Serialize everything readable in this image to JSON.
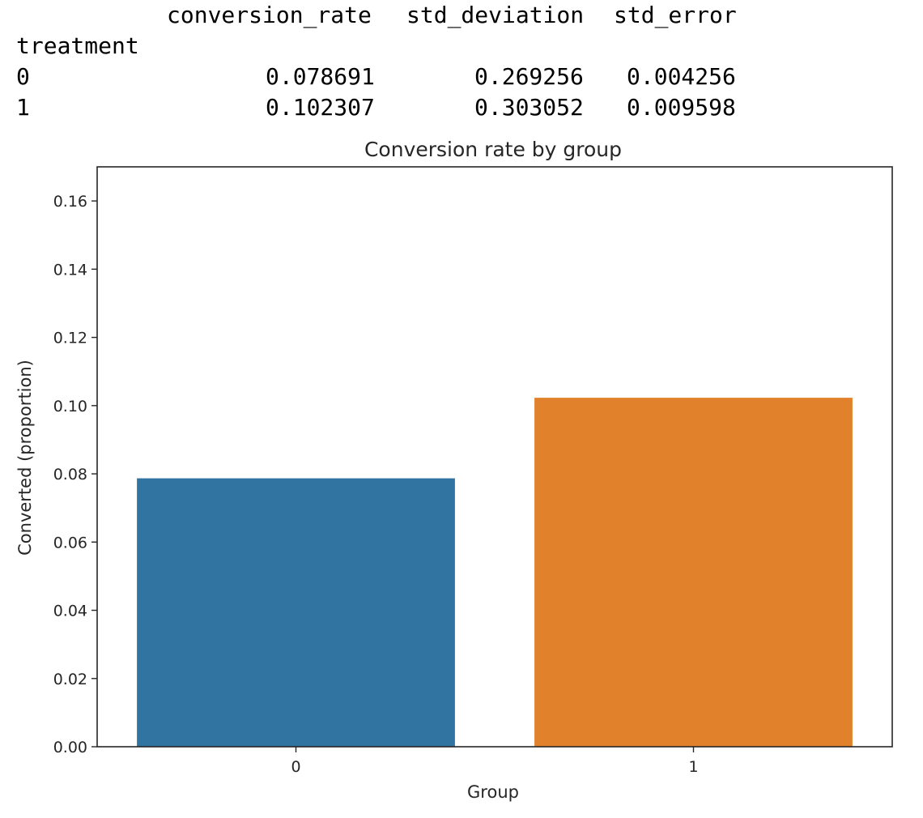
{
  "table": {
    "columns": [
      "conversion_rate",
      "std_deviation",
      "std_error"
    ],
    "index_name": "treatment",
    "rows": [
      {
        "index": "0",
        "values": [
          "0.078691",
          "0.269256",
          "0.004256"
        ]
      },
      {
        "index": "1",
        "values": [
          "0.102307",
          "0.303052",
          "0.009598"
        ]
      }
    ]
  },
  "chart_data": {
    "type": "bar",
    "title": "Conversion rate by group",
    "xlabel": "Group",
    "ylabel": "Converted (proportion)",
    "categories": [
      "0",
      "1"
    ],
    "values": [
      0.078691,
      0.102307
    ],
    "colors": [
      "#3274a1",
      "#e1812c"
    ],
    "ylim": [
      0,
      0.17
    ],
    "yticks": [
      0.0,
      0.02,
      0.04,
      0.06,
      0.08,
      0.1,
      0.12,
      0.14,
      0.16
    ],
    "ytick_labels": [
      "0.00",
      "0.02",
      "0.04",
      "0.06",
      "0.08",
      "0.10",
      "0.12",
      "0.14",
      "0.16"
    ],
    "grid": false,
    "legend": "none"
  }
}
